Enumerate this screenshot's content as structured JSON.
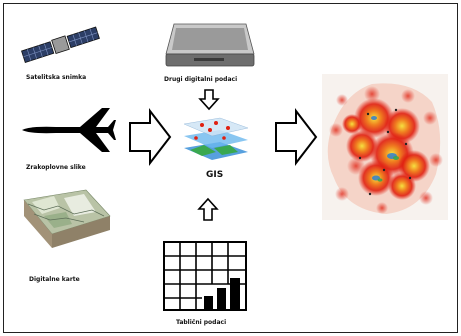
{
  "labels": {
    "satellite": "Satelitska snimka",
    "aerial": "Zrakoplovne slike",
    "map": "Digitalne karte",
    "other_digital": "Drugi digitalni podaci",
    "gis": "GIS",
    "tables": "Tablični podaci"
  },
  "icons": {
    "satellite": "satellite-icon",
    "airplane": "airplane-icon",
    "terrain_map": "terrain-map-icon",
    "scanner": "scanner-icon",
    "gis_layers": "gis-layers-icon",
    "table_chart": "table-chart-icon",
    "heatmap": "heatmap-output-icon"
  },
  "colors": {
    "heat_red": "#e02010",
    "heat_orange": "#f08020",
    "heat_yellow": "#f6e040",
    "gis_blue": "#3a8fd8",
    "gis_green": "#3aa850"
  }
}
